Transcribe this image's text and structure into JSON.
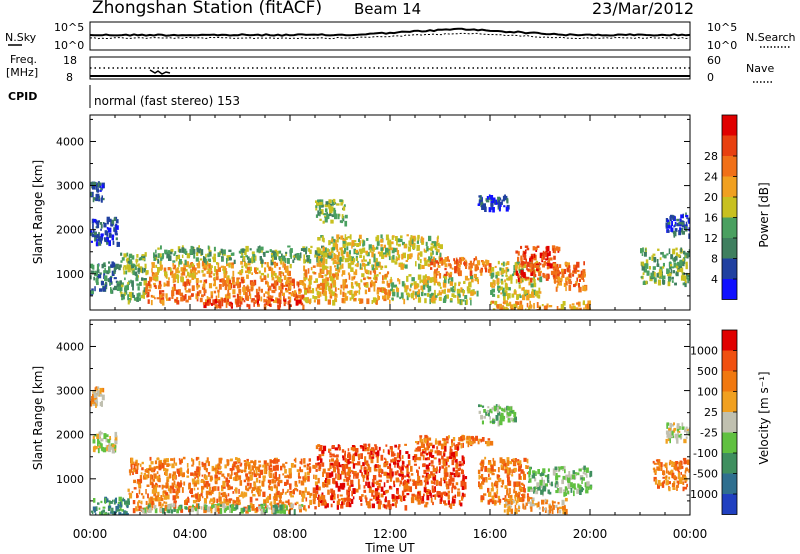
{
  "header": {
    "title": "Zhongshan Station (fitACF)",
    "beam": "Beam 14",
    "date": "23/Mar/2012"
  },
  "top_panels": {
    "nsky_label": "N.Sky",
    "nsearch_label": "N.Search",
    "nsky_ticks": [
      "10^5",
      "10^0"
    ],
    "nsearch_ticks": [
      "10^5",
      "10^0"
    ],
    "freq_label_line1": "Freq.",
    "freq_label_line2": "[MHz]",
    "freq_ticks": [
      "18",
      "8"
    ],
    "nave_label": "Nave",
    "nave_ticks": [
      "60",
      "0"
    ],
    "cpid_label": "CPID",
    "cpid_value": "normal (fast stereo) 153"
  },
  "chart_data": [
    {
      "type": "heatmap",
      "panel": "power",
      "title": "",
      "xlabel": "",
      "ylabel": "Slant Range [km]",
      "x_ticks": [
        "00:00",
        "04:00",
        "08:00",
        "12:00",
        "16:00",
        "20:00",
        "00:00"
      ],
      "xlim_hours": [
        0,
        24
      ],
      "y_ticks": [
        1000,
        2000,
        3000,
        4000
      ],
      "ylim": [
        180,
        4600
      ],
      "colorbar": {
        "label": "Power [dB]",
        "ticks": [
          "4",
          "8",
          "12",
          "16",
          "20",
          "24",
          "28"
        ],
        "colors": [
          "#1010ff",
          "#2040a0",
          "#3f7f5f",
          "#4aa060",
          "#c8c020",
          "#f0a020",
          "#f07018",
          "#e84010",
          "#e00000"
        ]
      },
      "regions": [
        {
          "t0": 0.0,
          "t1": 1.2,
          "r0": 600,
          "r1": 1300,
          "level": 2
        },
        {
          "t0": 0.0,
          "t1": 1.1,
          "r0": 1700,
          "r1": 2300,
          "level": 1
        },
        {
          "t0": 0.0,
          "t1": 0.5,
          "r0": 2700,
          "r1": 3100,
          "level": 1
        },
        {
          "t0": 1.2,
          "t1": 2.2,
          "r0": 400,
          "r1": 1500,
          "level": 3
        },
        {
          "t0": 2.2,
          "t1": 8.5,
          "r0": 400,
          "r1": 900,
          "level": 6
        },
        {
          "t0": 2.2,
          "t1": 8.0,
          "r0": 900,
          "r1": 1300,
          "level": 5
        },
        {
          "t0": 2.5,
          "t1": 9.5,
          "r0": 1300,
          "r1": 1650,
          "level": 3
        },
        {
          "t0": 4.5,
          "t1": 8.5,
          "r0": 300,
          "r1": 450,
          "level": 7
        },
        {
          "t0": 8.5,
          "t1": 12.0,
          "r0": 400,
          "r1": 1200,
          "level": 5
        },
        {
          "t0": 9.0,
          "t1": 14.0,
          "r0": 1200,
          "r1": 1900,
          "level": 4
        },
        {
          "t0": 9.0,
          "t1": 10.2,
          "r0": 2200,
          "r1": 2700,
          "level": 3
        },
        {
          "t0": 12.0,
          "t1": 15.5,
          "r0": 400,
          "r1": 1000,
          "level": 4
        },
        {
          "t0": 13.5,
          "t1": 16.0,
          "r0": 1000,
          "r1": 1400,
          "level": 6
        },
        {
          "t0": 15.5,
          "t1": 16.8,
          "r0": 2500,
          "r1": 2800,
          "level": 1
        },
        {
          "t0": 16.0,
          "t1": 18.0,
          "r0": 500,
          "r1": 1300,
          "level": 4
        },
        {
          "t0": 17.0,
          "t1": 18.8,
          "r0": 900,
          "r1": 1650,
          "level": 7
        },
        {
          "t0": 18.5,
          "t1": 19.8,
          "r0": 700,
          "r1": 1300,
          "level": 6
        },
        {
          "t0": 16.0,
          "t1": 20.0,
          "r0": 200,
          "r1": 400,
          "level": 5
        },
        {
          "t0": 22.0,
          "t1": 24.0,
          "r0": 800,
          "r1": 1600,
          "level": 3
        },
        {
          "t0": 23.0,
          "t1": 24.0,
          "r0": 1900,
          "r1": 2400,
          "level": 1
        }
      ]
    },
    {
      "type": "heatmap",
      "panel": "velocity",
      "title": "",
      "xlabel": "Time UT",
      "ylabel": "Slant Range [km]",
      "x_ticks": [
        "00:00",
        "04:00",
        "08:00",
        "12:00",
        "16:00",
        "20:00",
        "00:00"
      ],
      "xlim_hours": [
        0,
        24
      ],
      "y_ticks": [
        1000,
        2000,
        3000,
        4000
      ],
      "ylim": [
        180,
        4600
      ],
      "colorbar": {
        "label": "Velocity [m s⁻¹]",
        "ticks": [
          "1000",
          "500",
          "100",
          "25",
          "-25",
          "-100",
          "-500",
          "-1000"
        ],
        "colors": [
          "#2040c0",
          "#2f6f8f",
          "#3f8f5f",
          "#60c040",
          "#c0c0b0",
          "#f0a020",
          "#f07810",
          "#f05010",
          "#e00000"
        ]
      },
      "regions": [
        {
          "t0": 0.0,
          "t1": 1.5,
          "r0": 200,
          "r1": 600,
          "level": 2
        },
        {
          "t0": 0.0,
          "t1": 1.0,
          "r0": 1700,
          "r1": 2100,
          "level": 4
        },
        {
          "t0": 0.0,
          "t1": 0.5,
          "r0": 2700,
          "r1": 3100,
          "level": 5
        },
        {
          "t0": 1.5,
          "t1": 9.0,
          "r0": 300,
          "r1": 1500,
          "level": 6
        },
        {
          "t0": 2.0,
          "t1": 8.5,
          "r0": 300,
          "r1": 450,
          "level": 3
        },
        {
          "t0": 9.0,
          "t1": 15.0,
          "r0": 400,
          "r1": 1800,
          "level": 7
        },
        {
          "t0": 13.0,
          "t1": 16.0,
          "r0": 1800,
          "r1": 2000,
          "level": 6
        },
        {
          "t0": 15.5,
          "t1": 17.0,
          "r0": 2300,
          "r1": 2700,
          "level": 3
        },
        {
          "t0": 15.5,
          "t1": 17.5,
          "r0": 500,
          "r1": 1500,
          "level": 6
        },
        {
          "t0": 17.5,
          "t1": 20.0,
          "r0": 700,
          "r1": 1300,
          "level": 3
        },
        {
          "t0": 16.5,
          "t1": 19.0,
          "r0": 300,
          "r1": 600,
          "level": 5
        },
        {
          "t0": 22.5,
          "t1": 24.0,
          "r0": 800,
          "r1": 1500,
          "level": 6
        },
        {
          "t0": 23.0,
          "t1": 24.0,
          "r0": 1900,
          "r1": 2300,
          "level": 4
        }
      ]
    }
  ]
}
